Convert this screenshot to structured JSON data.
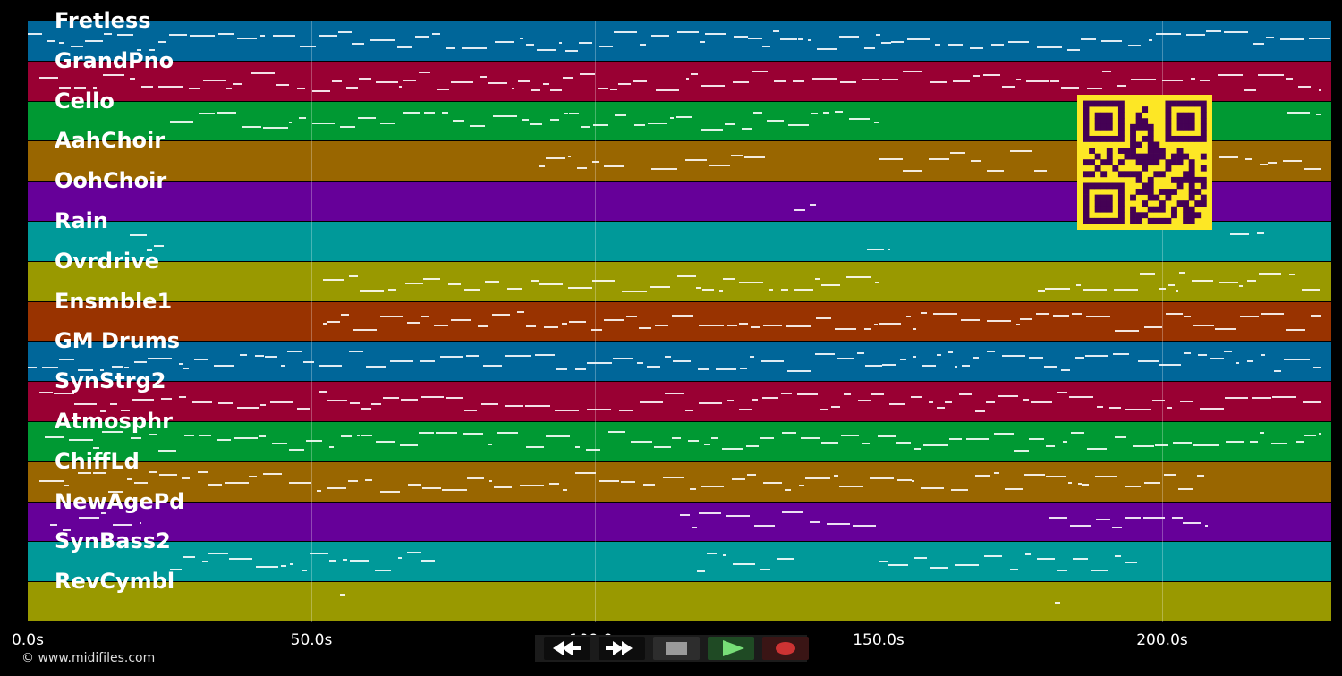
{
  "timeline": {
    "duration_seconds": 230,
    "ticks": [
      {
        "value": 0,
        "label": "0.0s"
      },
      {
        "value": 50,
        "label": "50.0s"
      },
      {
        "value": 100,
        "label": "100.0s"
      },
      {
        "value": 150,
        "label": "150.0s"
      },
      {
        "value": 200,
        "label": "200.0s"
      }
    ]
  },
  "tracks": [
    {
      "name": "Fretless",
      "color": "#006699"
    },
    {
      "name": "GrandPno",
      "color": "#990033"
    },
    {
      "name": "Cello",
      "color": "#009933"
    },
    {
      "name": "AahChoir",
      "color": "#996600"
    },
    {
      "name": "OohChoir",
      "color": "#660099"
    },
    {
      "name": "Rain",
      "color": "#009999"
    },
    {
      "name": "Ovrdrive",
      "color": "#999900"
    },
    {
      "name": "Ensmble1",
      "color": "#993300"
    },
    {
      "name": "GM Drums",
      "color": "#006699"
    },
    {
      "name": "SynStrg2",
      "color": "#990033"
    },
    {
      "name": "Atmosphr",
      "color": "#009933"
    },
    {
      "name": "ChiffLd",
      "color": "#996600"
    },
    {
      "name": "NewAgePd",
      "color": "#660099"
    },
    {
      "name": "SynBass2",
      "color": "#009999"
    },
    {
      "name": "RevCymbl",
      "color": "#999900"
    }
  ],
  "footer": {
    "copyright": "© www.midifiles.com"
  },
  "transport": {
    "rewind_icon": "rewind-icon",
    "fast_forward_icon": "fast-forward-icon",
    "stop_icon": "stop-icon",
    "play_icon": "play-icon",
    "record_icon": "record-icon",
    "play_color": "#77dd77",
    "record_color": "#cc3333"
  },
  "qr": {
    "foreground": "#440154",
    "background": "#fde725"
  }
}
